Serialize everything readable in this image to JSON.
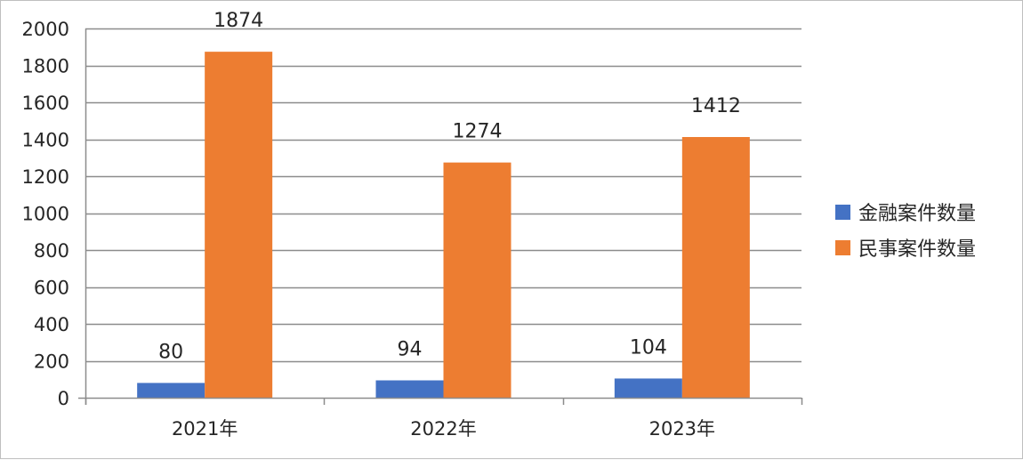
{
  "colors": {
    "series_1": "#4472C4",
    "series_2": "#ED7D31",
    "gridline": "#8c8c8c",
    "axis": "#8c8c8c"
  },
  "chart_data": {
    "type": "bar",
    "categories": [
      "2021年",
      "2022年",
      "2023年"
    ],
    "series": [
      {
        "name": "金融案件数量",
        "values": [
          80,
          94,
          104
        ]
      },
      {
        "name": "民事案件数量",
        "values": [
          1874,
          1274,
          1412
        ]
      }
    ],
    "title": "",
    "xlabel": "",
    "ylabel": "",
    "ylim": [
      0,
      2000
    ],
    "yticks": [
      0,
      200,
      400,
      600,
      800,
      1000,
      1200,
      1400,
      1600,
      1800,
      2000
    ],
    "grid": true,
    "legend_position": "right",
    "data_labels": true
  }
}
